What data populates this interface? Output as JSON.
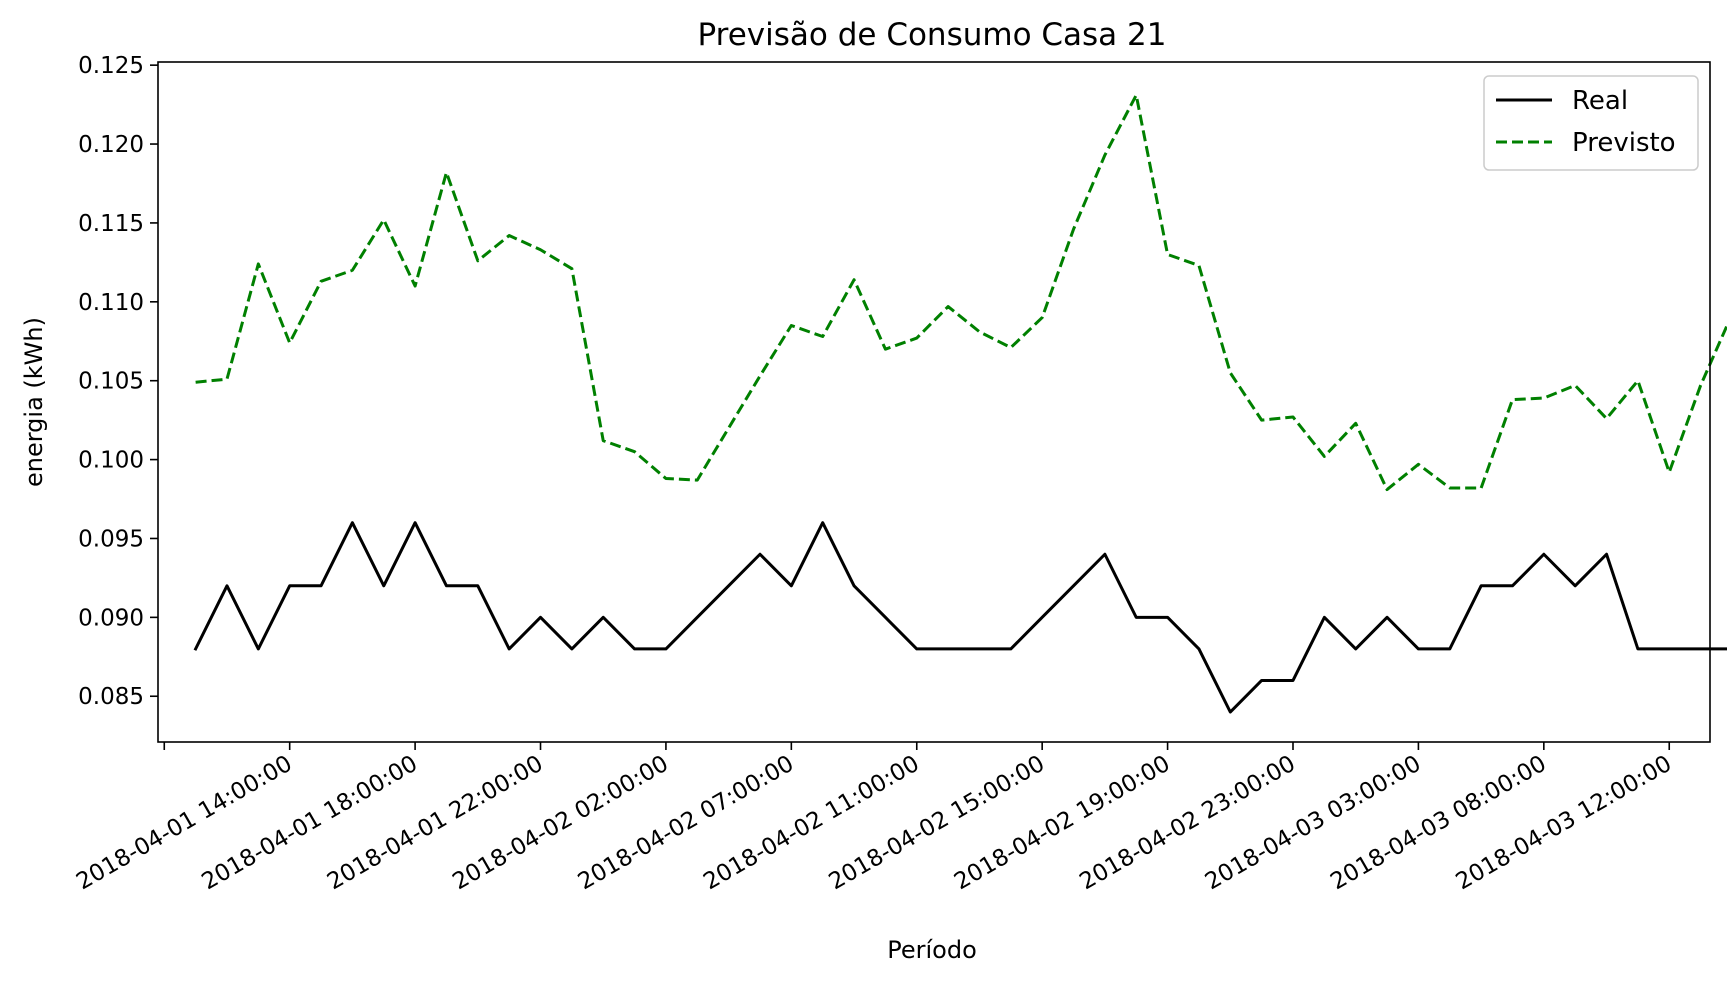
{
  "chart_data": {
    "type": "line",
    "title": "Previsão de Consumo Casa 21",
    "xlabel": "Período",
    "ylabel": "energia (kWh)",
    "ylim": [
      0.0821,
      0.1252
    ],
    "grid": false,
    "legend_position": "upper right",
    "yticks": [
      0.085,
      0.09,
      0.095,
      0.1,
      0.105,
      0.11,
      0.115,
      0.12,
      0.125
    ],
    "ytick_labels": [
      "0.085",
      "0.090",
      "0.095",
      "0.100",
      "0.105",
      "0.110",
      "0.115",
      "0.120",
      "0.125"
    ],
    "xlim": [
      -1.2,
      48.3
    ],
    "xticks": [
      -1,
      3,
      7,
      11,
      15,
      19,
      23,
      27,
      31,
      35,
      39,
      43,
      47
    ],
    "xtick_labels": [
      "",
      "2018-04-01 14:00:00",
      "2018-04-01 18:00:00",
      "2018-04-01 22:00:00",
      "2018-04-02 02:00:00",
      "2018-04-02 07:00:00",
      "2018-04-02 11:00:00",
      "2018-04-02 15:00:00",
      "2018-04-02 19:00:00",
      "2018-04-02 23:00:00",
      "2018-04-03 03:00:00",
      "2018-04-03 08:00:00",
      "2018-04-03 12:00:00"
    ],
    "series": [
      {
        "name": "Real",
        "color": "#000000",
        "style": "solid",
        "values": [
          0.088,
          0.092,
          0.088,
          0.092,
          0.092,
          0.096,
          0.092,
          0.096,
          0.092,
          0.092,
          0.088,
          0.09,
          0.088,
          0.09,
          0.088,
          0.088,
          0.09,
          0.092,
          0.094,
          0.092,
          0.096,
          0.092,
          0.09,
          0.088,
          0.088,
          0.088,
          0.088,
          0.09,
          0.092,
          0.094,
          0.09,
          0.09,
          0.088,
          0.084,
          0.086,
          0.086,
          0.09,
          0.088,
          0.09,
          0.088,
          0.088,
          0.092,
          0.092,
          0.094,
          0.092,
          0.094,
          0.088,
          0.088,
          0.088,
          0.088
        ]
      },
      {
        "name": "Previsto",
        "color": "#008000",
        "style": "dashed",
        "values": [
          0.1049,
          0.1051,
          0.1124,
          0.1074,
          0.1113,
          0.112,
          0.1152,
          0.111,
          0.1182,
          0.1126,
          0.1142,
          0.1133,
          0.1121,
          0.1012,
          0.1005,
          0.0988,
          0.0987,
          0.102,
          0.1053,
          0.1085,
          0.1078,
          0.1114,
          0.107,
          0.1077,
          0.1097,
          0.1081,
          0.1071,
          0.109,
          0.1146,
          0.1193,
          0.1231,
          0.113,
          0.1123,
          0.1055,
          0.1025,
          0.1027,
          0.1002,
          0.1023,
          0.0981,
          0.0997,
          0.0982,
          0.0982,
          0.1038,
          0.1039,
          0.1047,
          0.1026,
          0.105,
          0.0992,
          0.1047,
          0.1092
        ]
      }
    ]
  }
}
